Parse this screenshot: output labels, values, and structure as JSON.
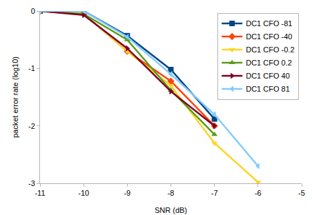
{
  "chart_data": {
    "type": "line",
    "x_label": "SNR (dB)",
    "y_label": "packet error rate (log10)",
    "x": [
      -11,
      -10,
      -9,
      -8,
      -7,
      -6
    ],
    "series": [
      {
        "name": "DC1 CFO -81",
        "color": "#004586",
        "marker": "square",
        "values": [
          0,
          0,
          -0.43,
          -1.02,
          -1.88,
          null
        ]
      },
      {
        "name": "DC1 CFO -40",
        "color": "#ff420e",
        "marker": "diamond",
        "values": [
          0,
          -0.05,
          -0.7,
          -1.22,
          -2.0,
          null
        ]
      },
      {
        "name": "DC1 CFO -0.2",
        "color": "#ffd320",
        "marker": "triangle-down",
        "values": [
          0,
          -0.05,
          -0.7,
          -1.3,
          -2.3,
          -2.98
        ]
      },
      {
        "name": "DC1 CFO 0.2",
        "color": "#579d1c",
        "marker": "triangle-up",
        "values": [
          0,
          -0.05,
          -0.5,
          -1.38,
          -2.15,
          null
        ]
      },
      {
        "name": "DC1 CFO 40",
        "color": "#7e0021",
        "marker": "triangle-right",
        "values": [
          0,
          -0.07,
          -0.65,
          -1.4,
          -2.0,
          null
        ]
      },
      {
        "name": "DC1 CFO 81",
        "color": "#83caff",
        "marker": "triangle-left",
        "values": [
          0,
          0,
          -0.45,
          -1.1,
          -1.8,
          -2.7
        ]
      }
    ],
    "xlim": [
      -11,
      -5
    ],
    "xticks": [
      -11,
      -10,
      -9,
      -8,
      -7,
      -6,
      -5
    ],
    "ylim": [
      -3,
      0
    ],
    "yticks": [
      -3,
      -2,
      -1,
      0
    ],
    "grid": false,
    "legend": "top-right"
  }
}
